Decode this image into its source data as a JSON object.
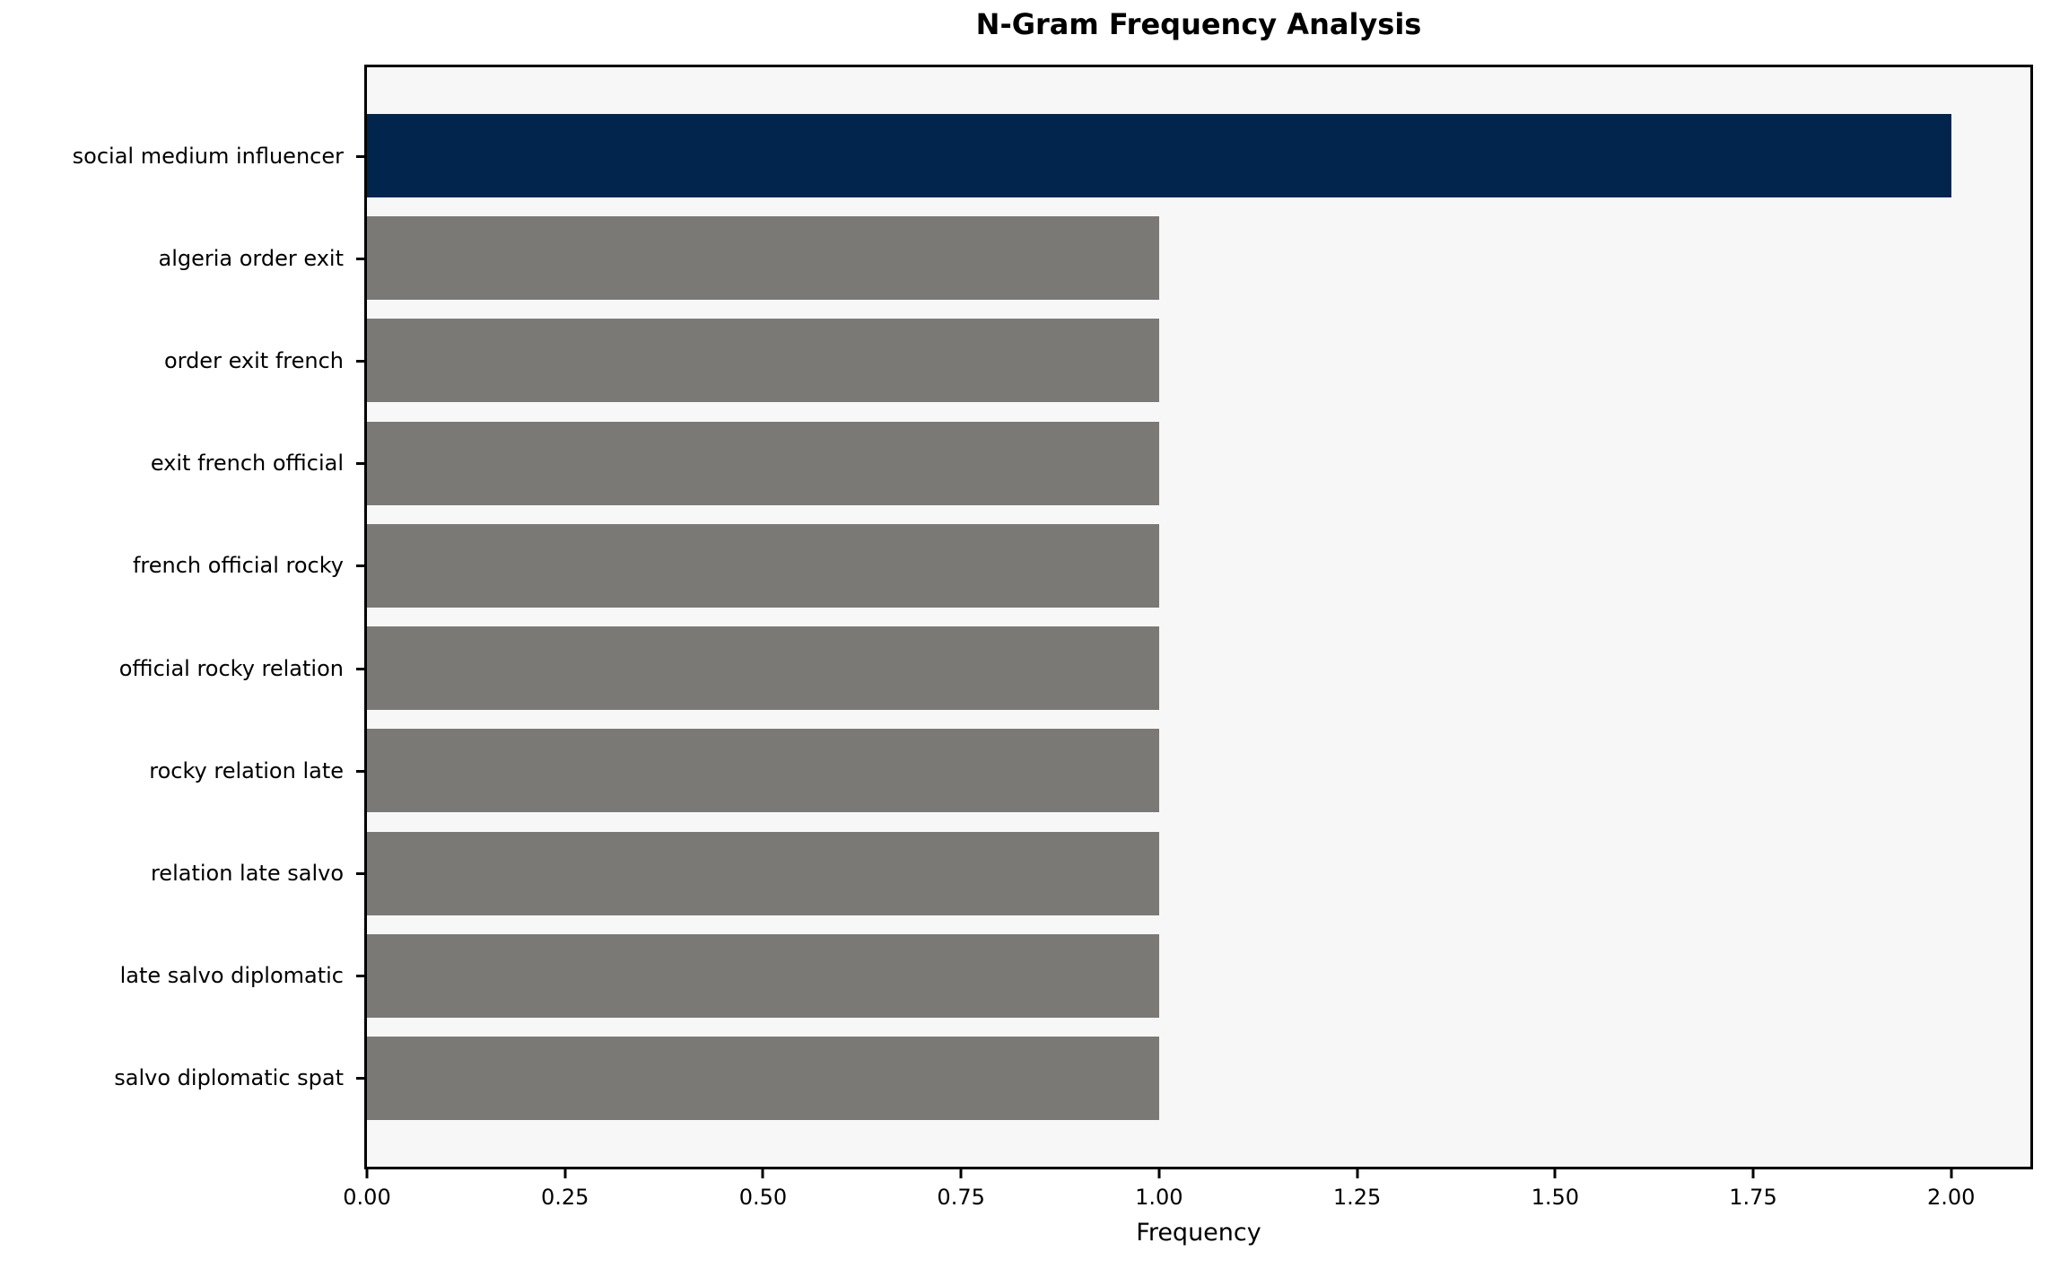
{
  "chart_data": {
    "type": "bar",
    "orientation": "horizontal",
    "title": "N-Gram Frequency Analysis",
    "xlabel": "Frequency",
    "ylabel": "",
    "categories": [
      "social medium influencer",
      "algeria order exit",
      "order exit french",
      "exit french official",
      "french official rocky",
      "official rocky relation",
      "rocky relation late",
      "relation late salvo",
      "late salvo diplomatic",
      "salvo diplomatic spat"
    ],
    "values": [
      2,
      1,
      1,
      1,
      1,
      1,
      1,
      1,
      1,
      1
    ],
    "bar_colors": [
      "#02254d",
      "#7b7975",
      "#7b7975",
      "#7b7975",
      "#7b7975",
      "#7b7975",
      "#7b7975",
      "#7b7975",
      "#7b7975",
      "#7b7975"
    ],
    "xlim": [
      0,
      2.1
    ],
    "x_tick_values": [
      0,
      0.25,
      0.5,
      0.75,
      1.0,
      1.25,
      1.5,
      1.75,
      2.0
    ],
    "x_tick_labels": [
      "0.00",
      "0.25",
      "0.50",
      "0.75",
      "1.00",
      "1.25",
      "1.50",
      "1.75",
      "2.00"
    ],
    "grid": false,
    "legend": null,
    "plot_background": "#f7f7f7",
    "figure_background": "#ffffff",
    "spine_color": "#000000"
  }
}
